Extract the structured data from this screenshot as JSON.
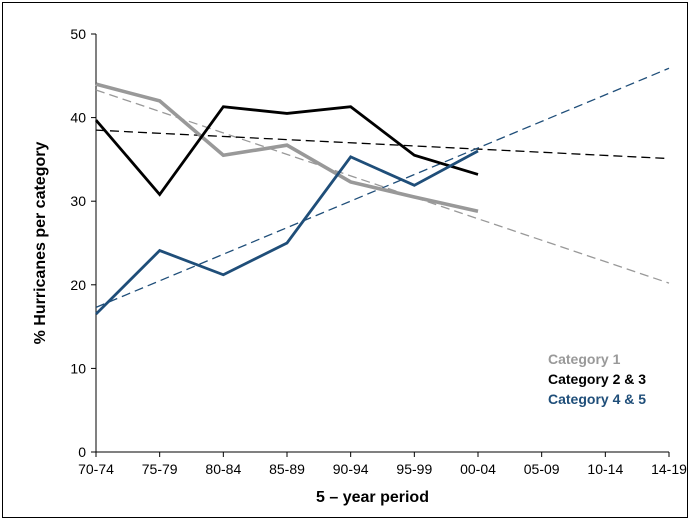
{
  "chart_data": {
    "type": "line",
    "categories": [
      "70-74",
      "75-79",
      "80-84",
      "85-89",
      "90-94",
      "95-99",
      "00-04",
      "05-09",
      "10-14",
      "14-19"
    ],
    "xlabel": "5 – year period",
    "ylabel": "% Hurricanes per category",
    "ylim": [
      0,
      50
    ],
    "yticks": [
      0,
      10,
      20,
      30,
      40,
      50
    ],
    "grid": false,
    "legend_position": "bottom-right",
    "series": [
      {
        "name": "Category 1",
        "color": "#999999",
        "values": [
          44,
          42,
          35.5,
          36.7,
          32.3,
          30.5,
          28.8,
          null,
          null,
          null
        ],
        "trend": [
          43.3,
          20.2
        ]
      },
      {
        "name": "Category 2 & 3",
        "color": "#000000",
        "values": [
          39.7,
          30.8,
          41.3,
          40.5,
          41.3,
          35.5,
          33.2,
          null,
          null,
          null
        ],
        "trend": [
          38.5,
          35.1
        ]
      },
      {
        "name": "Category 4 & 5",
        "color": "#1f4e79",
        "values": [
          16.5,
          24.1,
          21.2,
          25,
          35.3,
          31.9,
          36,
          null,
          null,
          null
        ],
        "trend": [
          17.3,
          45.9
        ]
      }
    ]
  }
}
